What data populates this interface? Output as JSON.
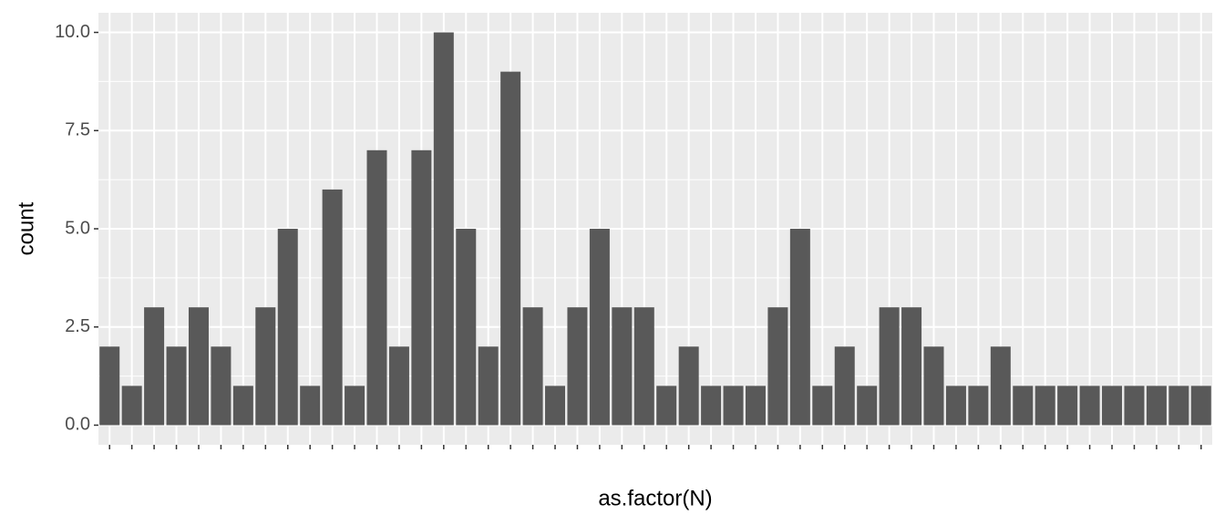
{
  "chart_data": {
    "type": "bar",
    "x_label": "as.factor(N)",
    "y_label": "count",
    "categories": [
      null,
      null,
      null,
      null,
      null,
      null,
      null,
      null,
      null,
      null,
      null,
      null,
      null,
      null,
      null,
      null,
      null,
      null,
      null,
      null,
      null,
      null,
      null,
      null,
      null,
      null,
      null,
      null,
      null,
      null,
      null,
      null,
      null,
      null,
      null,
      null,
      null,
      null,
      null,
      null,
      null,
      null,
      null,
      null,
      null,
      null,
      null,
      null,
      null,
      null
    ],
    "values": [
      2,
      1,
      3,
      2,
      3,
      2,
      1,
      3,
      5,
      1,
      6,
      1,
      7,
      2,
      7,
      10,
      5,
      2,
      9,
      3,
      1,
      3,
      5,
      3,
      3,
      1,
      2,
      1,
      1,
      1,
      3,
      5,
      1,
      2,
      1,
      3,
      3,
      2,
      1,
      1,
      2,
      1,
      1,
      1,
      1,
      1,
      1,
      1,
      1,
      1
    ],
    "color": "#595959",
    "ylim": [
      -0.5,
      10.5
    ],
    "yticks": [
      {
        "value": 0,
        "label": "0.0"
      },
      {
        "value": 2.5,
        "label": "2.5"
      },
      {
        "value": 5,
        "label": "5.0"
      },
      {
        "value": 7.5,
        "label": "7.5"
      },
      {
        "value": 10,
        "label": "10.0"
      }
    ],
    "grid": true
  }
}
